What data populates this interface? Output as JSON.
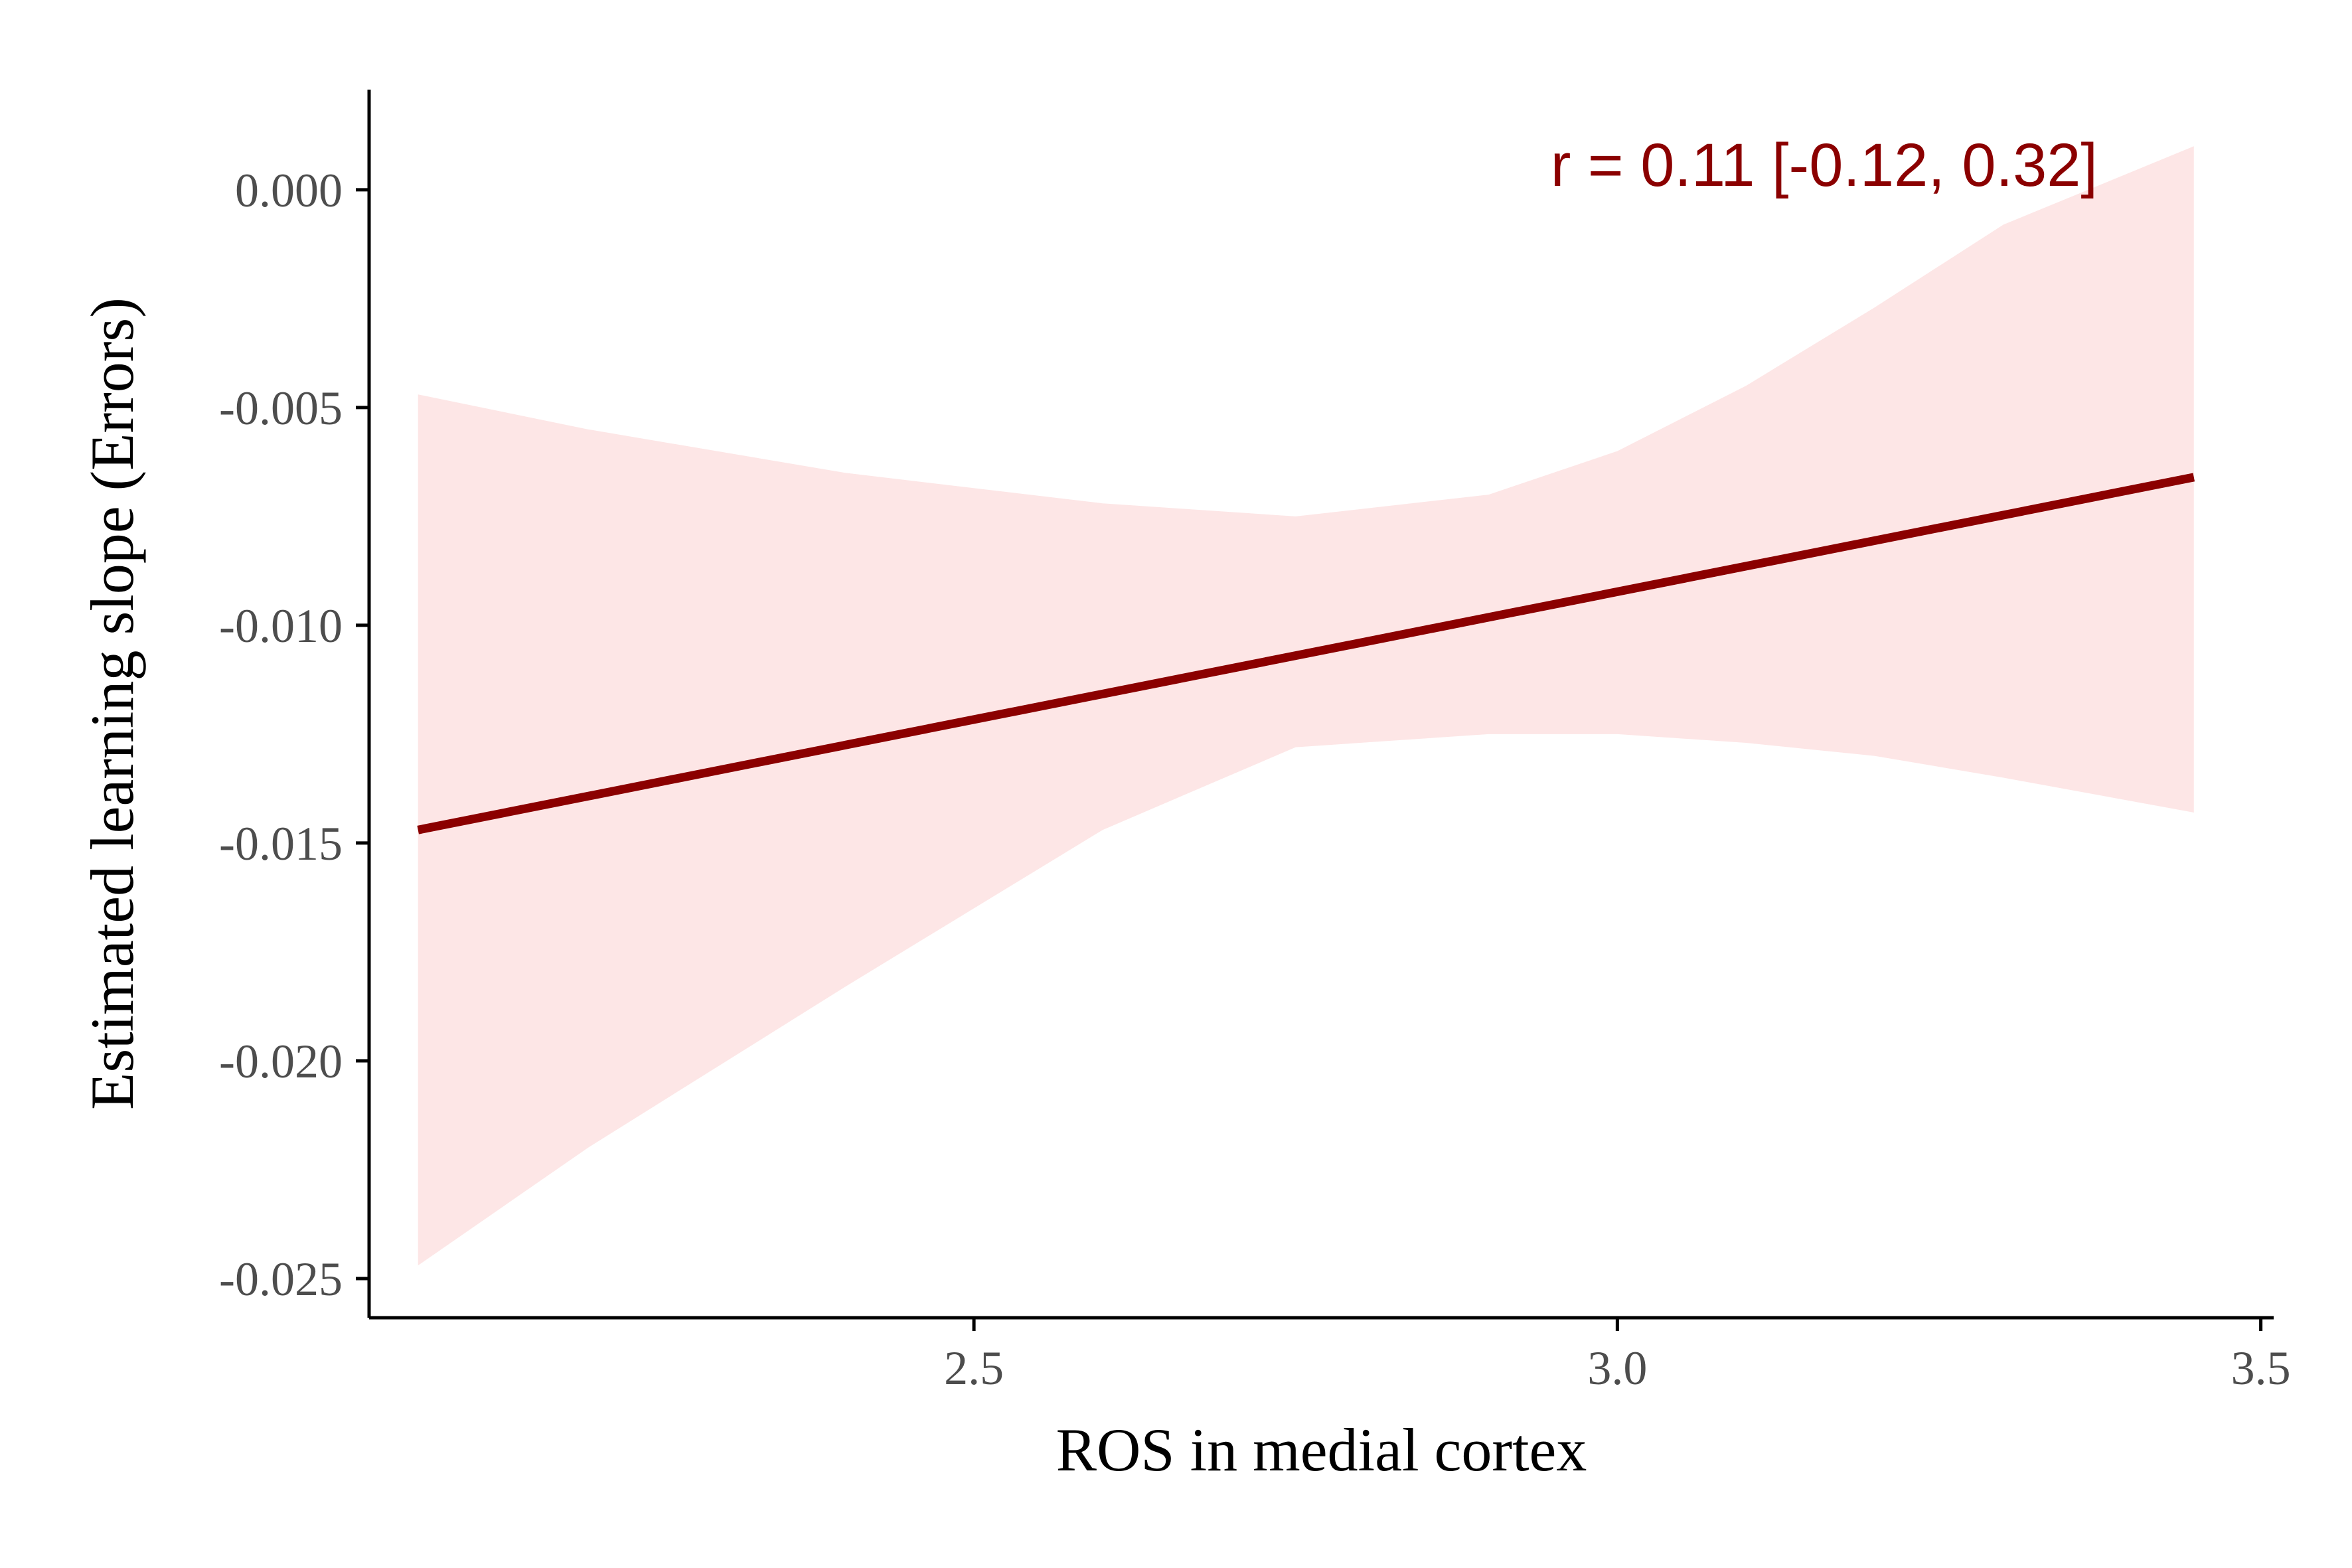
{
  "chart_data": {
    "type": "line",
    "xlabel": "ROS in medial cortex",
    "ylabel": "Estimated learning slope (Errors)",
    "annotation": "r = 0.11 [-0.12, 0.32]",
    "xlim": [
      2.03,
      3.51
    ],
    "ylim": [
      -0.0259,
      0.0023
    ],
    "x_ticks": [
      {
        "value": 2.5,
        "label": "2.5"
      },
      {
        "value": 3.0,
        "label": "3.0"
      },
      {
        "value": 3.5,
        "label": "3.5"
      }
    ],
    "y_ticks": [
      {
        "value": 0.0,
        "label": "0.000"
      },
      {
        "value": -0.005,
        "label": "-0.005"
      },
      {
        "value": -0.01,
        "label": "-0.010"
      },
      {
        "value": -0.015,
        "label": "-0.015"
      },
      {
        "value": -0.02,
        "label": "-0.020"
      },
      {
        "value": -0.025,
        "label": "-0.025"
      }
    ],
    "series": [
      {
        "x": [
          2.068,
          3.448
        ],
        "y": [
          -0.0147,
          -0.0066
        ]
      }
    ],
    "confidence_band": {
      "x": [
        2.068,
        2.2,
        2.4,
        2.6,
        2.75,
        2.9,
        3.0,
        3.1,
        3.2,
        3.3,
        3.448
      ],
      "upper": [
        -0.0047,
        -0.0055,
        -0.0065,
        -0.0072,
        -0.0075,
        -0.007,
        -0.006,
        -0.0045,
        -0.0027,
        -0.0008,
        0.001
      ],
      "lower": [
        -0.0247,
        -0.022,
        -0.0183,
        -0.0147,
        -0.0128,
        -0.0125,
        -0.0125,
        -0.0127,
        -0.013,
        -0.0135,
        -0.0143
      ]
    },
    "grid": false,
    "legend": "none",
    "colors": {
      "line": "#8b0000",
      "band": "#fde6e6",
      "annotation": "#8b0000",
      "axis": "#000000",
      "tick_label": "#4d4d4d"
    }
  }
}
